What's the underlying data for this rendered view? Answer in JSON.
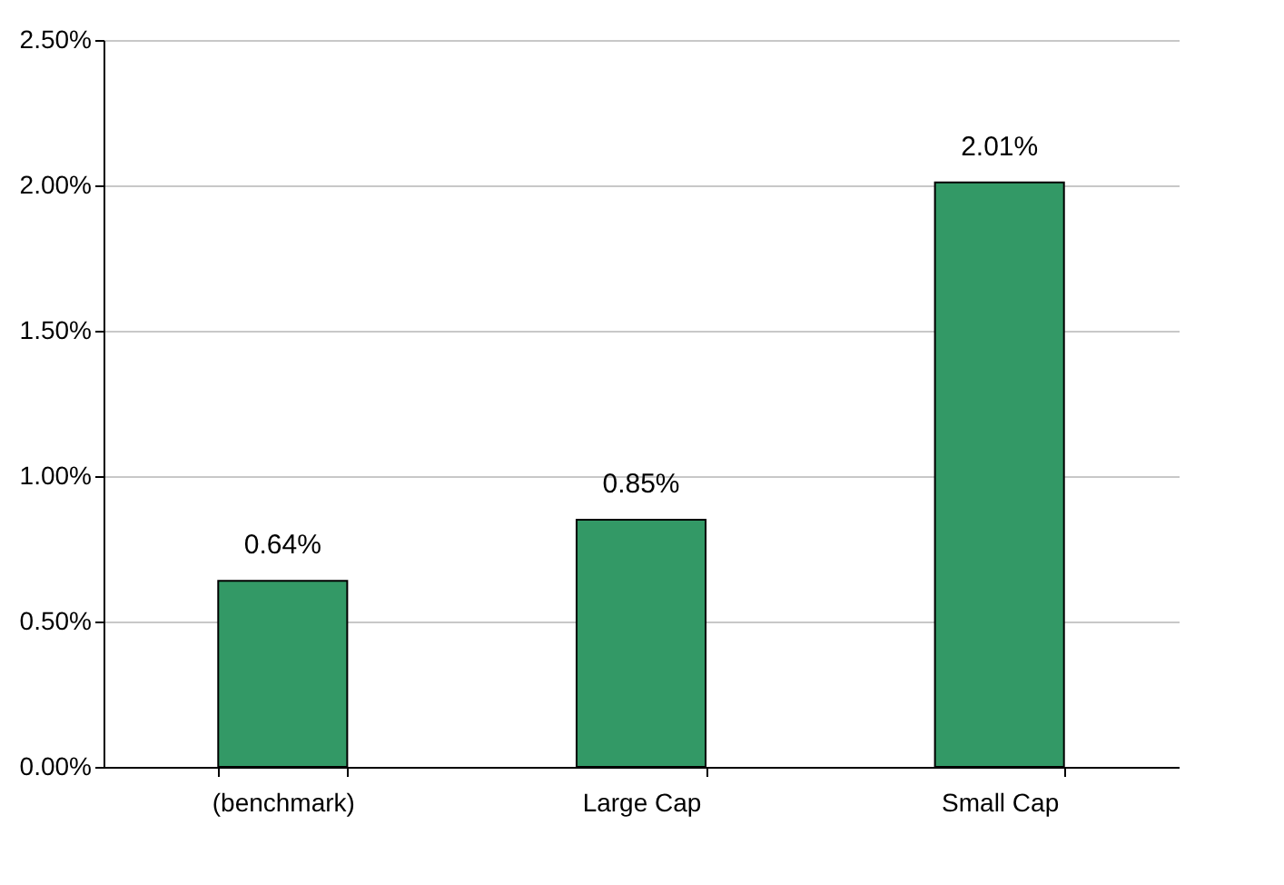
{
  "chart_data": {
    "type": "bar",
    "categories": [
      "(benchmark)",
      "Large Cap",
      "Small Cap"
    ],
    "values": [
      0.64,
      0.85,
      2.01
    ],
    "value_labels": [
      "0.64%",
      "0.85%",
      "2.01%"
    ],
    "color": "#339966",
    "ylim": [
      0,
      2.5
    ],
    "yticks": [
      {
        "value": 0,
        "label": "0.00%"
      },
      {
        "value": 0.5,
        "label": "0.50%"
      },
      {
        "value": 1,
        "label": "1.00%"
      },
      {
        "value": 1.5,
        "label": "1.50%"
      },
      {
        "value": 2,
        "label": "2.00%"
      },
      {
        "value": 2.5,
        "label": "2.50%"
      }
    ],
    "grid": "y"
  }
}
